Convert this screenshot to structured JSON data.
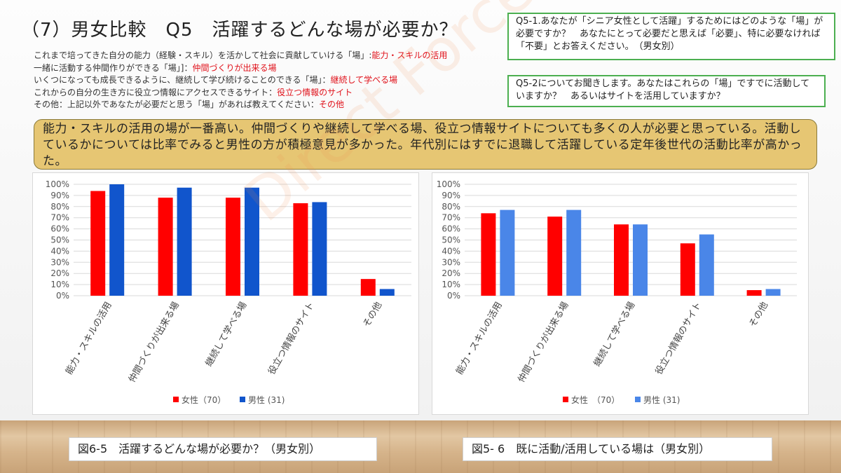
{
  "title": "（7）男女比較　Q5　活躍するどんな場が必要か？",
  "definitions": [
    {
      "text": "これまで培ってきた自分の能力（経験・スキル）を活かして社会に貢献していける「場」:",
      "highlight": "能力・スキルの活用"
    },
    {
      "text": "一緒に活動する仲間作りができる「場」]：",
      "highlight": "仲間づくりが出来る場"
    },
    {
      "text": "いくつになっても成長できるように、継続して学び続けることのできる「場」：",
      "highlight": "継続して学べる場"
    },
    {
      "text": "これからの自分の生き方に役立つ情報にアクセスできるサイト：",
      "highlight": "役立つ情報のサイト"
    },
    {
      "text": "その他：上記以外であなたが必要だと思う「場」があれば教えてください：",
      "highlight": "その他"
    }
  ],
  "question_box_1": "Q5-1.あなたが「シニア女性として活躍」するためにはどのような「場」が必要ですか？　あなたにとって必要だと思えば「必要」、特に必要なければ「不要」とお答えください。　（男女別）",
  "question_box_2": "Q5-2についてお聞きします。あなたはこれらの「場」ですでに活動していますか？　あるいはサイトを活用していますか？",
  "summary": "能力・スキルの活用の場が一番高い。仲間づくりや継続して学べる場、役立つ情報サイトについても多くの人が必要と思っている。活動しているかについては比率でみると男性の方が積極意見が多かった。年代別にはすでに退職して活躍している定年後世代の活動比率が高かった。",
  "watermark": "Direct Force",
  "caption_left": "図6-5　活躍するどんな場が必要か？（男女別）",
  "caption_right": "図5- 6　既に活動/活用している場は（男女別）",
  "colors": {
    "female": "#ff0000",
    "male_left": "#1155cc",
    "male_right": "#4a86e8",
    "grid": "#d9d9d9"
  },
  "chart_data": [
    {
      "type": "bar",
      "title": "",
      "categories": [
        "能力・スキルの活用",
        "仲間づくりが出来る場",
        "継続して学べる場",
        "役立つ情報のサイト",
        "その他"
      ],
      "series": [
        {
          "name": "女性（70）",
          "values": [
            94,
            88,
            88,
            83,
            15
          ]
        },
        {
          "name": "男性 (31)",
          "values": [
            100,
            97,
            97,
            84,
            6
          ]
        }
      ],
      "ylim": [
        0,
        100
      ],
      "yticks": [
        "0%",
        "10%",
        "20%",
        "30%",
        "40%",
        "50%",
        "60%",
        "70%",
        "80%",
        "90%",
        "100%"
      ],
      "grid": true,
      "legend": "bottom"
    },
    {
      "type": "bar",
      "title": "",
      "categories": [
        "能力・スキルの活用",
        "仲間づくりが出来る場",
        "継続して学べる場",
        "役立つ情報のサイト",
        "その他"
      ],
      "series": [
        {
          "name": "女性　（70）",
          "values": [
            74,
            71,
            64,
            47,
            5
          ]
        },
        {
          "name": "男性 (31)",
          "values": [
            77,
            77,
            64,
            55,
            6
          ]
        }
      ],
      "ylim": [
        0,
        100
      ],
      "yticks": [
        "0%",
        "10%",
        "20%",
        "30%",
        "40%",
        "50%",
        "60%",
        "70%",
        "80%",
        "90%",
        "100%"
      ],
      "grid": true,
      "legend": "bottom"
    }
  ]
}
